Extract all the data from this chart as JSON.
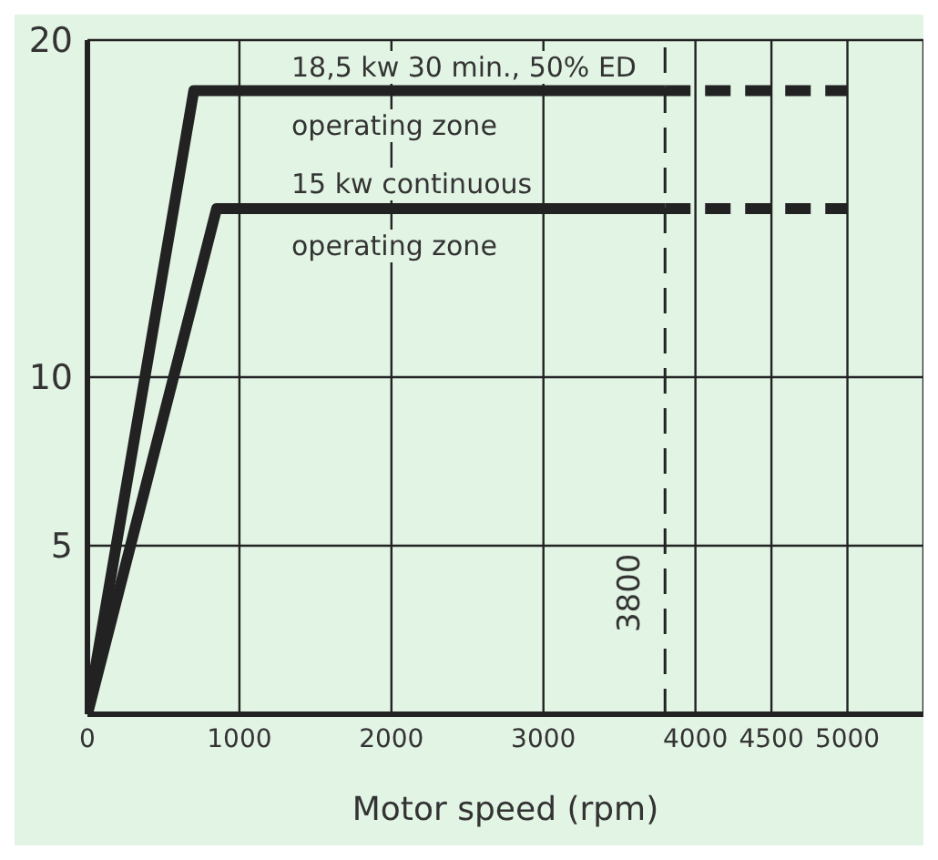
{
  "chart_data": {
    "type": "line",
    "xlabel": "Motor speed (rpm)",
    "xlim": [
      0,
      5500
    ],
    "xticks": [
      0,
      1000,
      2000,
      3000,
      4000,
      4500,
      5000
    ],
    "ylim": [
      0,
      20
    ],
    "yticks": [
      5,
      10,
      20
    ],
    "grid": true,
    "marker": "none",
    "series": [
      {
        "color": "#222222",
        "x": [
          0,
          700,
          3800
        ],
        "values": [
          0,
          18.5,
          18.5
        ],
        "line_style": "solid"
      },
      {
        "color": "#222222",
        "x": [
          3800,
          5000
        ],
        "values": [
          18.5,
          18.5
        ],
        "line_style": "dashed"
      },
      {
        "color": "#222222",
        "x": [
          0,
          850,
          3800
        ],
        "values": [
          0,
          15,
          15
        ],
        "line_style": "solid"
      },
      {
        "color": "#222222",
        "x": [
          3800,
          5000
        ],
        "values": [
          15,
          15
        ],
        "line_style": "dashed"
      }
    ],
    "ref_lines": [
      {
        "axis": "x",
        "value": 3800,
        "label": "3800",
        "line_style": "dashed",
        "color": "#222222"
      }
    ],
    "annotations": [
      "18,5 kw 30 min., 50% ED",
      "operating zone",
      "15 kw continuous",
      "operating zone"
    ]
  }
}
